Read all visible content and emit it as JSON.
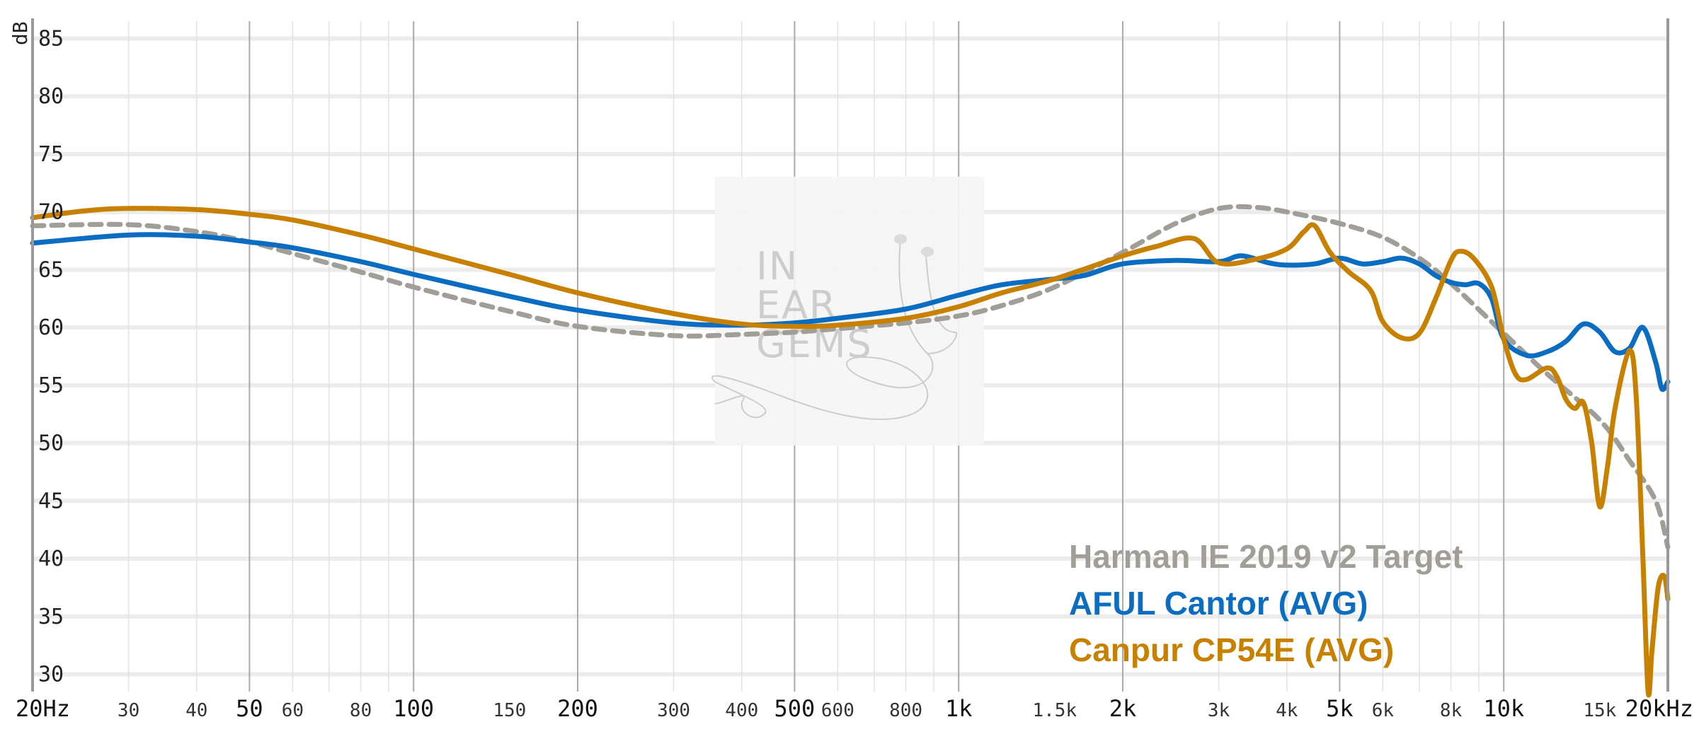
{
  "chart_data": {
    "type": "line",
    "xscale": "log",
    "xlim": [
      20,
      20000
    ],
    "ylim": [
      28.5,
      86.5
    ],
    "y_unit_label": "dB",
    "y_ticks": [
      30,
      35,
      40,
      45,
      50,
      55,
      60,
      65,
      70,
      75,
      80,
      85
    ],
    "x_ticks": [
      {
        "value": 20,
        "label": "20Hz",
        "major": true
      },
      {
        "value": 30,
        "label": "30",
        "major": false
      },
      {
        "value": 40,
        "label": "40",
        "major": false
      },
      {
        "value": 50,
        "label": "50",
        "major": true
      },
      {
        "value": 60,
        "label": "60",
        "major": false
      },
      {
        "value": 80,
        "label": "80",
        "major": false
      },
      {
        "value": 100,
        "label": "100",
        "major": true
      },
      {
        "value": 150,
        "label": "150",
        "major": false
      },
      {
        "value": 200,
        "label": "200",
        "major": true
      },
      {
        "value": 300,
        "label": "300",
        "major": false
      },
      {
        "value": 400,
        "label": "400",
        "major": false
      },
      {
        "value": 500,
        "label": "500",
        "major": true
      },
      {
        "value": 600,
        "label": "600",
        "major": false
      },
      {
        "value": 800,
        "label": "800",
        "major": false
      },
      {
        "value": 1000,
        "label": "1k",
        "major": true
      },
      {
        "value": 1500,
        "label": "1.5k",
        "major": false
      },
      {
        "value": 2000,
        "label": "2k",
        "major": true
      },
      {
        "value": 3000,
        "label": "3k",
        "major": false
      },
      {
        "value": 4000,
        "label": "4k",
        "major": false
      },
      {
        "value": 5000,
        "label": "5k",
        "major": true
      },
      {
        "value": 6000,
        "label": "6k",
        "major": false
      },
      {
        "value": 8000,
        "label": "8k",
        "major": false
      },
      {
        "value": 10000,
        "label": "10k",
        "major": true
      },
      {
        "value": 15000,
        "label": "15k",
        "major": false
      },
      {
        "value": 20000,
        "label": "20kHz",
        "major": true
      }
    ],
    "grid": true,
    "legend_position": "bottom-right",
    "series": [
      {
        "name": "Harman IE 2019 v2 Target",
        "color": "#a19e98",
        "style": "dashed",
        "points": [
          [
            20,
            68.8
          ],
          [
            30,
            68.9
          ],
          [
            40,
            68.3
          ],
          [
            50,
            67.4
          ],
          [
            60,
            66.4
          ],
          [
            80,
            64.8
          ],
          [
            100,
            63.5
          ],
          [
            150,
            61.4
          ],
          [
            200,
            60.1
          ],
          [
            300,
            59.3
          ],
          [
            400,
            59.4
          ],
          [
            500,
            59.6
          ],
          [
            600,
            59.9
          ],
          [
            800,
            60.4
          ],
          [
            1000,
            61.0
          ],
          [
            1200,
            61.9
          ],
          [
            1500,
            63.5
          ],
          [
            2000,
            66.5
          ],
          [
            2500,
            69.0
          ],
          [
            3000,
            70.3
          ],
          [
            3500,
            70.4
          ],
          [
            4000,
            70.0
          ],
          [
            5000,
            69.0
          ],
          [
            6000,
            67.8
          ],
          [
            7000,
            66.0
          ],
          [
            8000,
            63.8
          ],
          [
            10000,
            59.5
          ],
          [
            12000,
            56.0
          ],
          [
            15000,
            52.0
          ],
          [
            17000,
            48.5
          ],
          [
            19000,
            45.0
          ],
          [
            20000,
            41.0
          ]
        ]
      },
      {
        "name": "AFUL Cantor (AVG)",
        "color": "#0a6dc2",
        "style": "solid",
        "points": [
          [
            20,
            67.3
          ],
          [
            30,
            68.0
          ],
          [
            40,
            67.9
          ],
          [
            50,
            67.4
          ],
          [
            60,
            66.9
          ],
          [
            80,
            65.7
          ],
          [
            100,
            64.6
          ],
          [
            150,
            62.7
          ],
          [
            200,
            61.5
          ],
          [
            300,
            60.4
          ],
          [
            400,
            60.2
          ],
          [
            500,
            60.4
          ],
          [
            600,
            60.8
          ],
          [
            800,
            61.6
          ],
          [
            1000,
            62.8
          ],
          [
            1200,
            63.7
          ],
          [
            1500,
            64.2
          ],
          [
            1700,
            64.5
          ],
          [
            2000,
            65.5
          ],
          [
            2500,
            65.8
          ],
          [
            3000,
            65.7
          ],
          [
            3300,
            66.2
          ],
          [
            3700,
            65.6
          ],
          [
            4000,
            65.4
          ],
          [
            4500,
            65.5
          ],
          [
            5000,
            66.0
          ],
          [
            5500,
            65.5
          ],
          [
            6000,
            65.7
          ],
          [
            6500,
            66.0
          ],
          [
            7000,
            65.5
          ],
          [
            7500,
            64.5
          ],
          [
            8000,
            63.9
          ],
          [
            8500,
            63.7
          ],
          [
            9000,
            63.8
          ],
          [
            9500,
            62.5
          ],
          [
            10000,
            59.0
          ],
          [
            11000,
            57.6
          ],
          [
            12000,
            57.9
          ],
          [
            13000,
            58.8
          ],
          [
            14000,
            60.3
          ],
          [
            15000,
            59.6
          ],
          [
            16000,
            57.9
          ],
          [
            17000,
            58.2
          ],
          [
            18000,
            60.0
          ],
          [
            19000,
            57.0
          ],
          [
            19500,
            54.7
          ],
          [
            20000,
            55.3
          ]
        ]
      },
      {
        "name": "Canpur CP54E (AVG)",
        "color": "#c88000",
        "style": "solid",
        "points": [
          [
            20,
            69.5
          ],
          [
            25,
            70.1
          ],
          [
            30,
            70.3
          ],
          [
            40,
            70.2
          ],
          [
            50,
            69.8
          ],
          [
            60,
            69.3
          ],
          [
            80,
            68.0
          ],
          [
            100,
            66.8
          ],
          [
            150,
            64.6
          ],
          [
            200,
            63.0
          ],
          [
            300,
            61.2
          ],
          [
            400,
            60.3
          ],
          [
            500,
            60.1
          ],
          [
            600,
            60.2
          ],
          [
            800,
            60.8
          ],
          [
            1000,
            61.8
          ],
          [
            1200,
            63.0
          ],
          [
            1500,
            64.2
          ],
          [
            2000,
            66.2
          ],
          [
            2300,
            67.0
          ],
          [
            2700,
            67.7
          ],
          [
            3000,
            65.6
          ],
          [
            3500,
            65.9
          ],
          [
            4000,
            66.8
          ],
          [
            4300,
            68.3
          ],
          [
            4500,
            68.8
          ],
          [
            4800,
            66.5
          ],
          [
            5200,
            64.8
          ],
          [
            5700,
            63.2
          ],
          [
            6000,
            60.5
          ],
          [
            6500,
            59.1
          ],
          [
            7000,
            59.5
          ],
          [
            7500,
            62.5
          ],
          [
            8000,
            65.8
          ],
          [
            8300,
            66.6
          ],
          [
            8800,
            66.0
          ],
          [
            9500,
            63.5
          ],
          [
            10000,
            59.0
          ],
          [
            10500,
            56.0
          ],
          [
            11000,
            55.5
          ],
          [
            12000,
            56.5
          ],
          [
            12500,
            55.8
          ],
          [
            13000,
            53.8
          ],
          [
            13500,
            53.0
          ],
          [
            14000,
            53.5
          ],
          [
            14500,
            50.0
          ],
          [
            15000,
            44.5
          ],
          [
            15500,
            48.0
          ],
          [
            16000,
            53.0
          ],
          [
            17000,
            58.0
          ],
          [
            17500,
            54.0
          ],
          [
            18000,
            40.0
          ],
          [
            18400,
            28.5
          ],
          [
            18700,
            32.0
          ],
          [
            19200,
            37.5
          ],
          [
            19700,
            38.5
          ],
          [
            20000,
            36.5
          ]
        ]
      }
    ]
  },
  "legend": {
    "items": [
      {
        "label": "Harman IE 2019 v2 Target",
        "color": "#a19e98"
      },
      {
        "label": "AFUL Cantor (AVG)",
        "color": "#0a6dc2"
      },
      {
        "label": "Canpur CP54E (AVG)",
        "color": "#c88000"
      }
    ]
  },
  "watermark": {
    "lines": [
      "IN",
      "EAR",
      "GEMS"
    ]
  }
}
